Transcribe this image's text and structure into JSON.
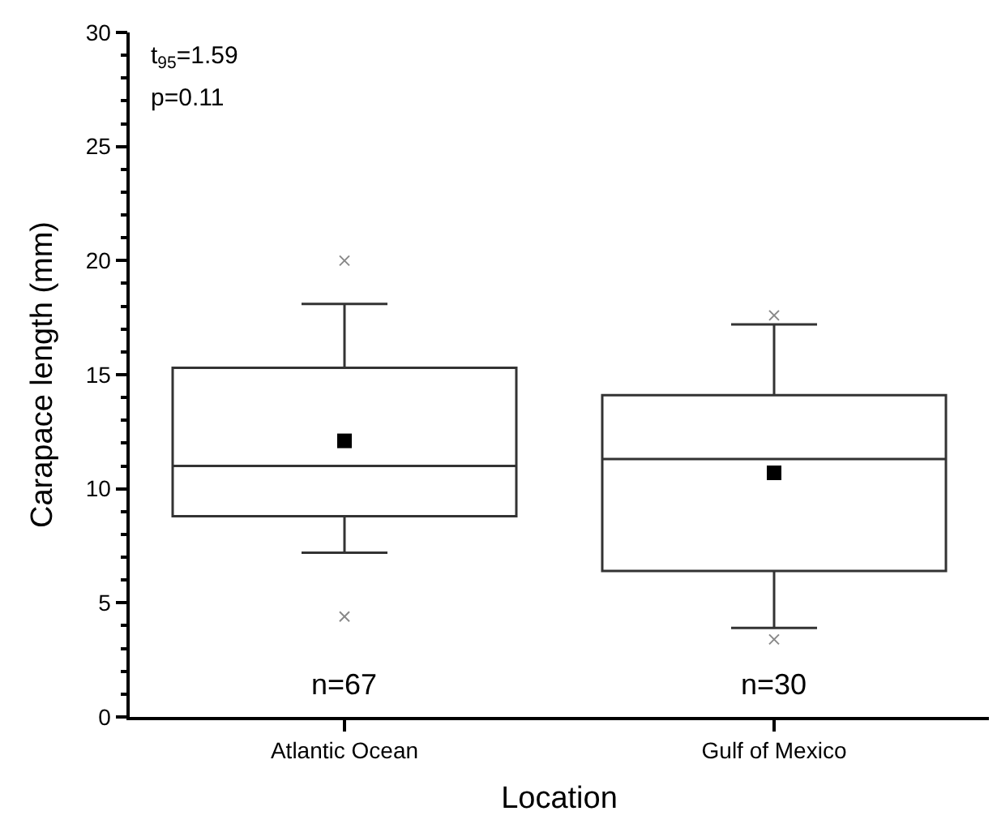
{
  "chart_data": {
    "type": "box",
    "xlabel": "Location",
    "ylabel": "Carapace length (mm)",
    "categories": [
      "Atlantic Ocean",
      "Gulf of Mexico"
    ],
    "boxes": [
      {
        "low": 7.2,
        "q1": 8.8,
        "median": 11.0,
        "q3": 15.3,
        "high": 18.1,
        "mean": 12.1,
        "outliers": [
          20.0,
          4.4
        ]
      },
      {
        "low": 3.9,
        "q1": 6.4,
        "median": 11.3,
        "q3": 14.1,
        "high": 17.2,
        "mean": 10.7,
        "outliers": [
          17.6,
          3.4
        ]
      }
    ],
    "ylim": [
      0,
      30
    ],
    "yticks": [
      0,
      5,
      10,
      15,
      20,
      25,
      30
    ],
    "annotations": [
      "t$_{95}$=1.59",
      "p=0.11",
      "n=67",
      "n=30"
    ]
  }
}
